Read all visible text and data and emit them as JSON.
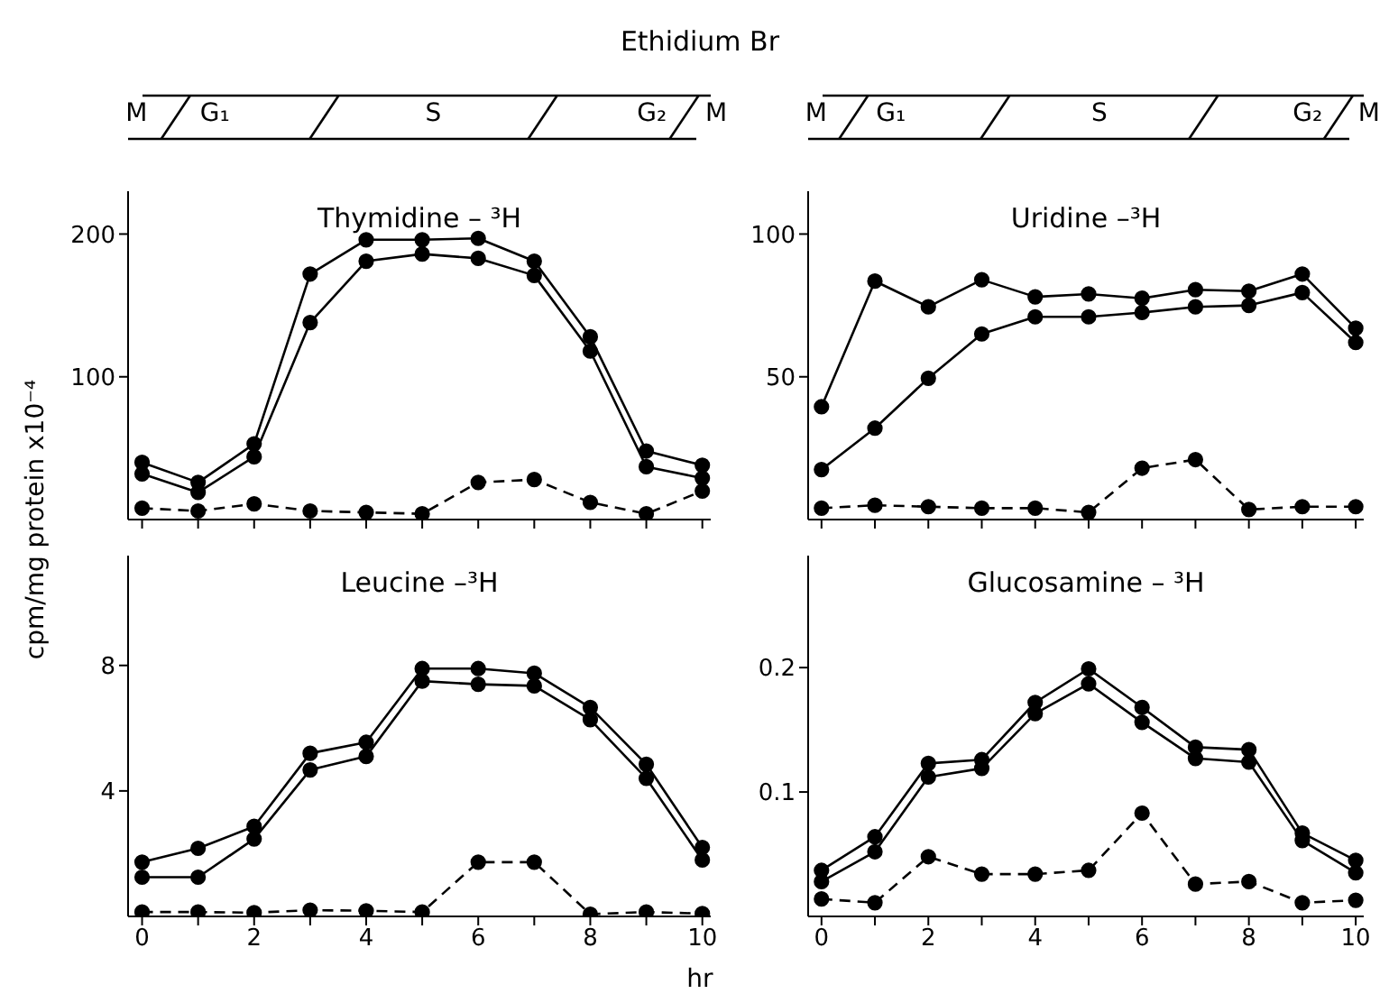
{
  "chart_data": [
    {
      "type": "line",
      "title": "Ethidium Br",
      "subtitle": "Thymidine – ³H",
      "ylabel": "cpm/mg protein x10⁻⁴",
      "annotations": [
        "M",
        "G₁",
        "S",
        "G₂",
        "M"
      ],
      "x": [
        0,
        1,
        2,
        3,
        4,
        5,
        6,
        7,
        8,
        9,
        10
      ],
      "xlim": [
        -0.25,
        10.15
      ],
      "xticks": [
        0,
        1,
        2,
        3,
        4,
        5,
        6,
        7,
        8,
        9,
        10
      ],
      "ylim": [
        0,
        230
      ],
      "yticks": [
        100,
        200
      ],
      "tick_labels": "y",
      "grid": false,
      "legend": false,
      "marker": "circle",
      "series": [
        {
          "color": "#000000",
          "values": [
            40,
            26,
            53,
            172,
            196,
            196,
            197,
            181,
            128,
            48,
            38
          ]
        },
        {
          "color": "#000000",
          "values": [
            32,
            19,
            44,
            138,
            181,
            186,
            183,
            171,
            118,
            37,
            29
          ]
        },
        {
          "color": "#000000",
          "line_style": "dashed",
          "values": [
            8,
            6,
            11,
            6,
            5,
            4,
            26,
            28,
            12,
            4,
            20
          ]
        }
      ]
    },
    {
      "type": "line",
      "subtitle": "Uridine –³H",
      "annotations": [
        "M",
        "G₁",
        "S",
        "G₂",
        "M"
      ],
      "x": [
        0,
        1,
        2,
        3,
        4,
        5,
        6,
        7,
        8,
        9,
        10
      ],
      "xlim": [
        -0.25,
        10.15
      ],
      "xticks": [
        0,
        1,
        2,
        3,
        4,
        5,
        6,
        7,
        8,
        9,
        10
      ],
      "ylim": [
        0,
        115
      ],
      "yticks": [
        50,
        100
      ],
      "tick_labels": "y",
      "grid": false,
      "legend": false,
      "marker": "circle",
      "series": [
        {
          "color": "#000000",
          "values": [
            39.5,
            83.5,
            74.5,
            84,
            78,
            79,
            77.5,
            80.5,
            80,
            86,
            67
          ]
        },
        {
          "color": "#000000",
          "values": [
            17.5,
            32,
            49.5,
            65,
            71,
            71,
            72.5,
            74.5,
            75,
            79.5,
            62
          ]
        },
        {
          "color": "#000000",
          "line_style": "dashed",
          "values": [
            4,
            5,
            4.5,
            4,
            4,
            2.5,
            18,
            21,
            3.5,
            4.5,
            4.5
          ]
        }
      ]
    },
    {
      "type": "line",
      "subtitle": "Leucine –³H",
      "xlabel": "hr",
      "x": [
        0,
        1,
        2,
        3,
        4,
        5,
        6,
        7,
        8,
        9,
        10
      ],
      "xlim": [
        -0.25,
        10.15
      ],
      "xticks": [
        0,
        {
          "value": 1,
          "label": null
        },
        2,
        {
          "value": 3,
          "label": null
        },
        4,
        {
          "value": 5,
          "label": null
        },
        6,
        {
          "value": 7,
          "label": null
        },
        8,
        {
          "value": 9,
          "label": null
        },
        10
      ],
      "ylim": [
        0,
        11.5
      ],
      "yticks": [
        4,
        8
      ],
      "grid": false,
      "legend": false,
      "marker": "circle",
      "series": [
        {
          "color": "#000000",
          "values": [
            1.73,
            2.17,
            2.87,
            5.2,
            5.55,
            7.9,
            7.9,
            7.75,
            6.66,
            4.85,
            2.2
          ]
        },
        {
          "color": "#000000",
          "values": [
            1.25,
            1.25,
            2.47,
            4.67,
            5.1,
            7.5,
            7.4,
            7.35,
            6.27,
            4.4,
            1.8
          ]
        },
        {
          "color": "#000000",
          "line_style": "dashed",
          "values": [
            0.14,
            0.14,
            0.12,
            0.2,
            0.18,
            0.14,
            1.73,
            1.73,
            0.07,
            0.14,
            0.09
          ]
        }
      ]
    },
    {
      "type": "line",
      "subtitle": "Glucosamine – ³H",
      "x": [
        0,
        1,
        2,
        3,
        4,
        5,
        6,
        7,
        8,
        9,
        10
      ],
      "xlim": [
        -0.25,
        10.15
      ],
      "xticks": [
        0,
        {
          "value": 1,
          "label": null
        },
        2,
        {
          "value": 3,
          "label": null
        },
        4,
        {
          "value": 5,
          "label": null
        },
        6,
        {
          "value": 7,
          "label": null
        },
        8,
        {
          "value": 9,
          "label": null
        },
        10
      ],
      "ylim": [
        0,
        0.29
      ],
      "yticks": [
        0.1,
        0.2
      ],
      "grid": false,
      "legend": false,
      "marker": "circle",
      "series": [
        {
          "color": "#000000",
          "values": [
            0.037,
            0.064,
            0.123,
            0.126,
            0.172,
            0.199,
            0.168,
            0.136,
            0.134,
            0.067,
            0.045
          ]
        },
        {
          "color": "#000000",
          "values": [
            0.028,
            0.052,
            0.112,
            0.119,
            0.163,
            0.187,
            0.156,
            0.127,
            0.124,
            0.061,
            0.035
          ]
        },
        {
          "color": "#000000",
          "line_style": "dashed",
          "values": [
            0.014,
            0.011,
            0.048,
            0.034,
            0.034,
            0.037,
            0.083,
            0.026,
            0.028,
            0.011,
            0.013
          ]
        }
      ]
    }
  ]
}
